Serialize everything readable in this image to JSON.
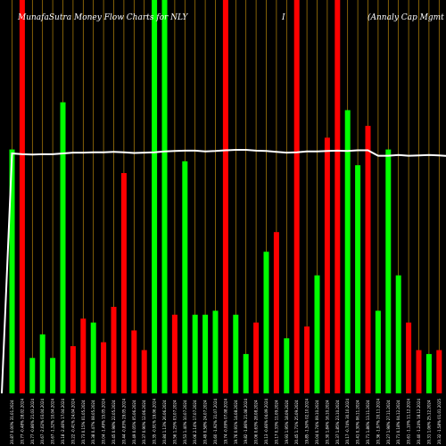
{
  "header": {
    "left_title": "MunafaSutra  Money Flow  Charts for NLY",
    "middle_title": "I",
    "right_title": "(Annaly Cap Mgmt Inc [NLY"
  },
  "colors": {
    "background": "#000000",
    "up": "#00ff00",
    "down": "#ff0000",
    "line": "#ffffff",
    "grid": "#b8860b"
  },
  "chart_data": {
    "type": "bar",
    "title": "",
    "xlabel": "",
    "ylabel": "",
    "ylim": [
      0,
      100
    ],
    "categories": [
      "20.87 0.00% 31.01.2024",
      "20.77 -0.48% 28.02.2024",
      "20.77 -0.86% 21.03.2024",
      "20.67 -2.02% 03.04.2024",
      "20.67 -1.32% 10.04.2024",
      "20.18 -2.46% 17.04.2024",
      "20.22 -0.41% 24.04.2024",
      "20.73 0.15% 01.05.2024",
      "20.38 0.47% 08.05.2024",
      "20.04 -1.49% 15.05.2024",
      "20.45 0.98% 22.05.2024",
      "20.44 -0.83% 29.05.2024",
      "20.49 0.05% 05.06.2024",
      "20.37 0.90% 12.06.2024",
      "20.35 -0.91% 19.06.2024",
      "20.84 1.13% 26.06.2024",
      "20.56 1.25% 03.07.2024",
      "20.53 1.40% 10.07.2024",
      "20.06 2.14% 17.07.2024",
      "20.49 0.58% 24.07.2024",
      "20.60 -1.92% 31.07.2024",
      "19.74 -0.09% 07.08.2024",
      "19.76 0.91% 14.08.2024",
      "19.82 -1.86% 21.08.2024",
      "20.06 0.63% 28.08.2024",
      "20.13 -0.66% 04.09.2024",
      "20.17 0.33% 11.09.2024",
      "19.93 1.95% 18.09.2024",
      "20.45 1.71% 25.09.2024",
      "19.85 -1.50% 02.10.2024",
      "20.04 0.74% 09.10.2024",
      "20.30 1.84% 16.10.2024",
      "20.37 1.85% 23.10.2024",
      "20.17 -0.74% 30.10.2024",
      "20.41 0.30% 06.11.2024",
      "20.71 1.86% 13.11.2024",
      "20.36 -1.97% 20.11.2024",
      "20.27 1.98% 27.11.2024",
      "20.71 0.18% 04.12.2024",
      "20.61 -1.10% 11.12.2024",
      "20.40 -1.24% 18.12.2024",
      "20.31 1.06% 25.12.2024",
      "20.32 -1.58% 01.01.2025",
      "20.74 0.00% 08.01.2025"
    ],
    "direction": [
      "up",
      "down",
      "up",
      "up",
      "up",
      "up",
      "down",
      "down",
      "up",
      "down",
      "down",
      "down",
      "down",
      "down",
      "up",
      "up",
      "down",
      "up",
      "up",
      "up",
      "up",
      "down",
      "up",
      "up",
      "down",
      "up",
      "down",
      "up",
      "down",
      "down",
      "up",
      "down",
      "down",
      "up",
      "up",
      "down",
      "up",
      "up",
      "up",
      "down",
      "down",
      "up",
      "down",
      "up"
    ],
    "values": [
      62,
      100,
      9,
      15,
      9,
      74,
      12,
      19,
      18,
      13,
      22,
      56,
      16,
      11,
      100,
      100,
      20,
      59,
      20,
      20,
      21,
      100,
      20,
      10,
      18,
      36,
      41,
      14,
      100,
      17,
      30,
      65,
      100,
      72,
      58,
      68,
      21,
      62,
      30,
      18,
      11,
      10,
      11,
      10
    ],
    "series": [
      {
        "name": "",
        "type": "line",
        "values": [
          61,
          60.8,
          60.7,
          60.8,
          60.8,
          61,
          61.2,
          61.2,
          61.3,
          61.3,
          61.4,
          61.3,
          61.1,
          61.2,
          61.3,
          61.5,
          61.6,
          61.7,
          61.7,
          61.5,
          61.6,
          61.8,
          61.9,
          61.9,
          61.7,
          61.6,
          61.4,
          61.2,
          61.3,
          61.5,
          61.5,
          61.6,
          61.7,
          61.6,
          61.8,
          61.8,
          60.4,
          60.4,
          60.6,
          60.4,
          60.5,
          60.6,
          60.5,
          60.3
        ]
      }
    ],
    "legend": "none",
    "grid": "vertical-lines"
  }
}
